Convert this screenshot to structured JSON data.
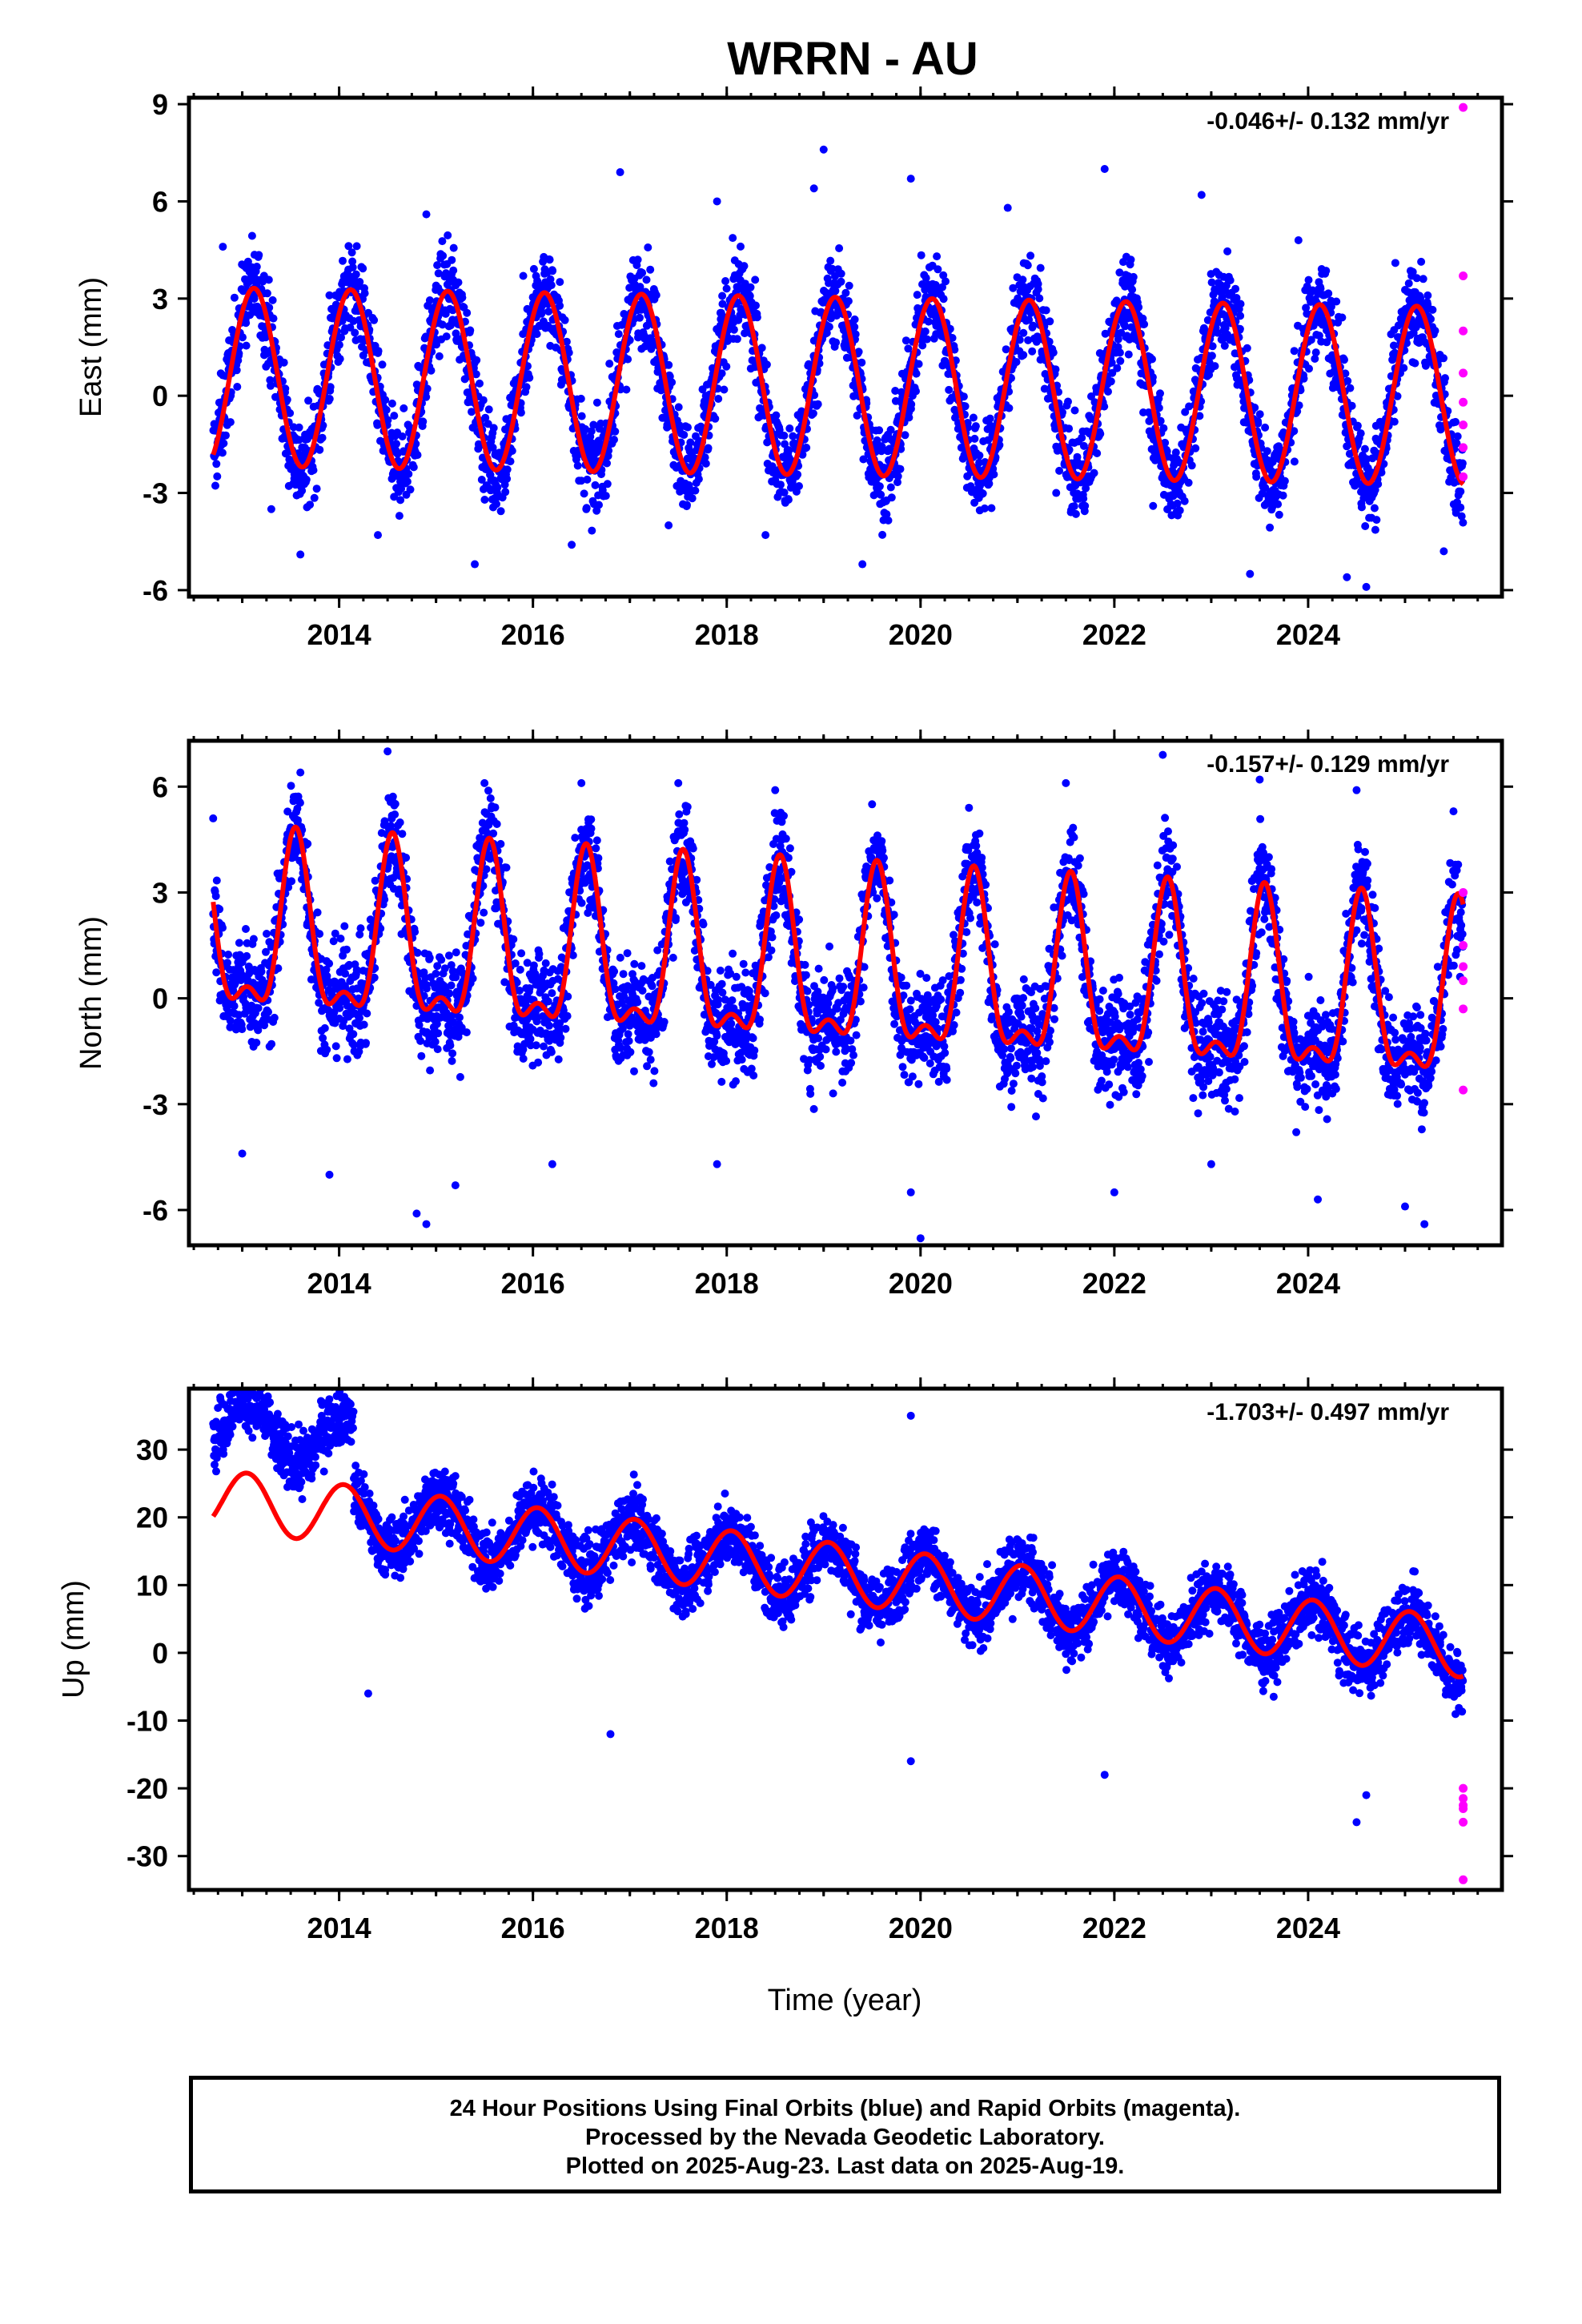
{
  "title": "WRRN - AU",
  "xlabel": "Time (year)",
  "colors": {
    "final_orbits": "#0000ff",
    "rapid_orbits": "#ff00ff",
    "model_fit": "#ff0000",
    "frame": "#000000"
  },
  "caption": {
    "line1": "24 Hour Positions Using Final Orbits (blue) and Rapid Orbits (magenta).",
    "line2": "Processed by the Nevada Geodetic Laboratory.",
    "line3": "Plotted on 2025-Aug-23. Last data on 2025-Aug-19."
  },
  "chart_data": [
    {
      "type": "scatter",
      "component": "east",
      "ylabel": "East (mm)",
      "rate_label": "-0.046+/- 0.132 mm/yr",
      "xlim": [
        2012.45,
        2026.0
      ],
      "ylim": [
        -6.2,
        9.2
      ],
      "yticks": [
        -6,
        -3,
        0,
        3,
        6,
        9
      ],
      "ytick_labels": [
        "-6",
        "-3",
        "0",
        "3",
        "6",
        "9"
      ],
      "xticks": [
        2014,
        2016,
        2018,
        2020,
        2022,
        2024
      ],
      "xtick_labels": [
        "2014",
        "2016",
        "2018",
        "2020",
        "2022",
        "2024"
      ],
      "grid": false,
      "model": {
        "offset": 0.3,
        "trend": -0.046,
        "annual_amp": 2.75,
        "peak_phase": 0.12,
        "semiannual_amp": 0.0,
        "semiannual_phase": 0.0,
        "start": 2012.7,
        "end": 2025.6
      },
      "series": [
        {
          "name": "Final Orbits",
          "color": "#0000ff",
          "x_start": 2012.7,
          "x_end": 2025.6,
          "noise": 1.0,
          "x": [
            2012.8,
            2013.3,
            2013.6,
            2013.9,
            2014.4,
            2014.9,
            2015.4,
            2015.9,
            2016.4,
            2016.9,
            2017.4,
            2017.9,
            2018.4,
            2018.9,
            2019.0,
            2019.4,
            2019.9,
            2020.9,
            2021.4,
            2021.9,
            2022.4,
            2022.9,
            2023.4,
            2023.9,
            2024.4,
            2024.6,
            2024.9,
            2025.4
          ],
          "y": [
            4.6,
            -3.5,
            -4.9,
            3.1,
            -4.3,
            5.6,
            -5.2,
            3.7,
            -4.6,
            6.9,
            -4.0,
            6.0,
            -4.3,
            6.4,
            7.6,
            -5.2,
            6.7,
            5.8,
            -3.0,
            7.0,
            -3.4,
            6.2,
            -5.5,
            4.8,
            -5.6,
            -5.9,
            4.1,
            -4.8
          ]
        },
        {
          "name": "Rapid Orbits",
          "color": "#ff00ff",
          "x": [
            2025.6,
            2025.6,
            2025.6,
            2025.6,
            2025.6,
            2025.6,
            2025.6,
            2025.6
          ],
          "y": [
            8.9,
            3.7,
            2.0,
            0.7,
            -0.2,
            -0.9,
            -1.6,
            -2.5
          ]
        }
      ]
    },
    {
      "type": "scatter",
      "component": "north",
      "ylabel": "North (mm)",
      "rate_label": "-0.157+/- 0.129 mm/yr",
      "xlim": [
        2012.45,
        2026.0
      ],
      "ylim": [
        -7.0,
        7.3
      ],
      "yticks": [
        -6,
        -3,
        0,
        3,
        6
      ],
      "ytick_labels": [
        "-6",
        "-3",
        "0",
        "3",
        "6"
      ],
      "xticks": [
        2014,
        2016,
        2018,
        2020,
        2022,
        2024
      ],
      "xtick_labels": [
        "2014",
        "2016",
        "2018",
        "2020",
        "2022",
        "2024"
      ],
      "grid": false,
      "model": {
        "offset": 0.7,
        "trend": -0.157,
        "annual_amp": 2.3,
        "peak_phase": 0.55,
        "semiannual_amp": 1.0,
        "semiannual_phase": 0.05,
        "start": 2012.7,
        "end": 2025.6
      },
      "series": [
        {
          "name": "Final Orbits",
          "color": "#0000ff",
          "x_start": 2012.7,
          "x_end": 2025.6,
          "noise": 1.1,
          "x": [
            2012.7,
            2013.0,
            2013.6,
            2013.9,
            2014.5,
            2014.8,
            2014.9,
            2015.2,
            2015.5,
            2016.2,
            2016.5,
            2017.5,
            2017.9,
            2018.5,
            2019.5,
            2019.9,
            2020.0,
            2020.5,
            2021.5,
            2022.0,
            2022.5,
            2023.0,
            2023.5,
            2024.1,
            2024.5,
            2025.0,
            2025.2,
            2025.5
          ],
          "y": [
            5.1,
            -4.4,
            6.4,
            -5.0,
            7.0,
            -6.1,
            -6.4,
            -5.3,
            6.1,
            -4.7,
            6.1,
            6.1,
            -4.7,
            5.9,
            5.5,
            -5.5,
            -6.8,
            5.4,
            6.1,
            -5.5,
            6.9,
            -4.7,
            6.2,
            -5.7,
            5.9,
            -5.9,
            -6.4,
            5.3
          ]
        },
        {
          "name": "Rapid Orbits",
          "color": "#ff00ff",
          "x": [
            2025.6,
            2025.6,
            2025.6,
            2025.6,
            2025.6,
            2025.6
          ],
          "y": [
            3.0,
            1.5,
            0.9,
            0.5,
            -0.3,
            -2.6
          ]
        }
      ]
    },
    {
      "type": "scatter",
      "component": "up",
      "ylabel": "Up (mm)",
      "rate_label": "-1.703+/- 0.497 mm/yr",
      "xlim": [
        2012.45,
        2026.0
      ],
      "ylim": [
        -35.0,
        39.0
      ],
      "yticks": [
        -30,
        -20,
        -10,
        0,
        10,
        20,
        30
      ],
      "ytick_labels": [
        "-30",
        "-20",
        "-10",
        "0",
        "10",
        "20",
        "30"
      ],
      "xticks": [
        2014,
        2016,
        2018,
        2020,
        2022,
        2024
      ],
      "xtick_labels": [
        "2014",
        "2016",
        "2018",
        "2020",
        "2022",
        "2024"
      ],
      "grid": false,
      "model": {
        "offset": 12.0,
        "trend": -1.703,
        "annual_amp": 4.4,
        "peak_phase": 0.05,
        "semiannual_amp": 0.0,
        "semiannual_phase": 0.0,
        "start": 2012.7,
        "end": 2025.6
      },
      "series": [
        {
          "name": "Final Orbits",
          "color": "#0000ff",
          "x_start": 2012.7,
          "x_end": 2025.6,
          "noise": 3.3,
          "offset_until": 2014.15,
          "offset_amount": 11.0,
          "x": [
            2013.0,
            2013.3,
            2014.0,
            2014.3,
            2014.9,
            2015.0,
            2016.1,
            2016.8,
            2017.9,
            2018.9,
            2019.9,
            2019.9,
            2020.0,
            2021.1,
            2021.9,
            2022.9,
            2023.9,
            2024.5,
            2024.6,
            2025.1
          ],
          "y": [
            37.0,
            34.0,
            31.0,
            -6.0,
            24.0,
            20.0,
            16.0,
            -12.0,
            15.0,
            18.0,
            35.0,
            -16.0,
            16.0,
            14.0,
            -18.0,
            12.0,
            10.0,
            -25.0,
            -21.0,
            12.0
          ]
        },
        {
          "name": "Rapid Orbits",
          "color": "#ff00ff",
          "x": [
            2025.6,
            2025.6,
            2025.6,
            2025.6,
            2025.6,
            2025.6
          ],
          "y": [
            -20.0,
            -21.5,
            -23.0,
            -25.0,
            -33.5,
            -22.5
          ]
        }
      ]
    }
  ]
}
